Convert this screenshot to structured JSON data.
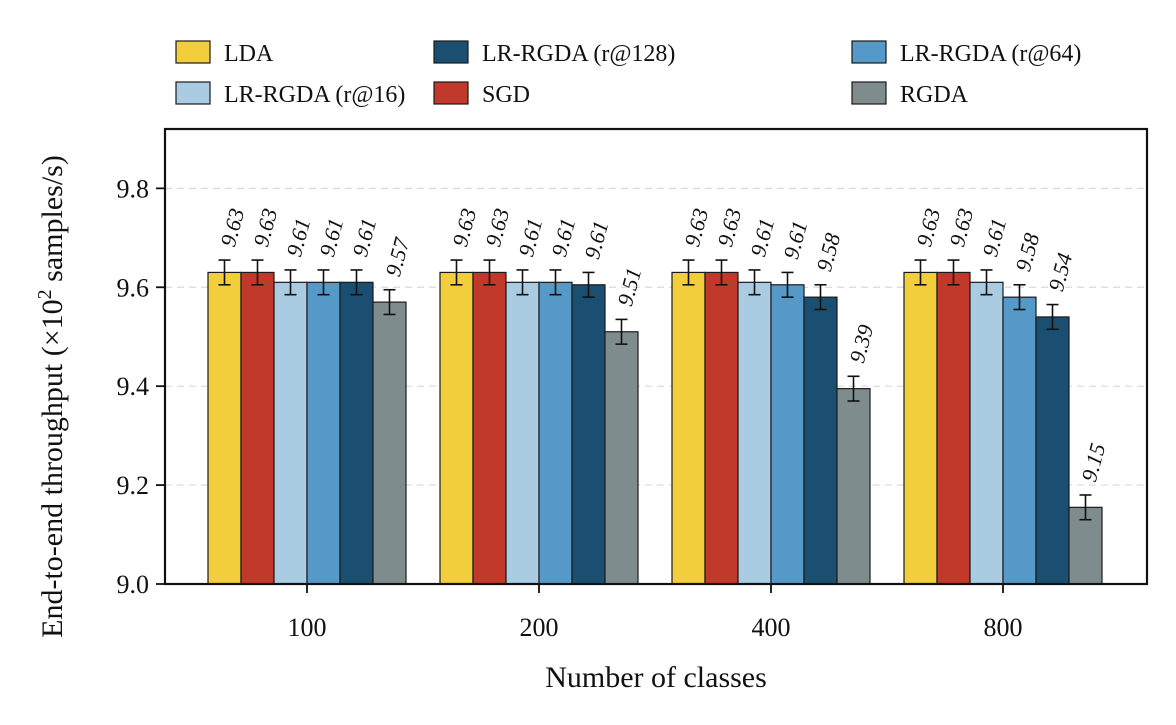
{
  "chart_data": {
    "type": "bar",
    "title": "",
    "xlabel": "Number of classes",
    "ylabel_prefix": "End-to-end throughput (",
    "ylabel_unit": "×10",
    "ylabel_exp": "2",
    "ylabel_suffix": " samples/s)",
    "categories": [
      "100",
      "200",
      "400",
      "800"
    ],
    "ylim": [
      9.0,
      9.92
    ],
    "yticks": [
      9.0,
      9.2,
      9.4,
      9.6,
      9.8
    ],
    "ytick_labels": [
      "9.0",
      "9.2",
      "9.4",
      "9.6",
      "9.8"
    ],
    "grid": true,
    "legend_position": "top",
    "error": 0.025,
    "series": [
      {
        "name": "LDA",
        "color": "#f2cd3c",
        "values": [
          9.63,
          9.63,
          9.63,
          9.63
        ],
        "labels": [
          "9.63",
          "9.63",
          "9.63",
          "9.63"
        ]
      },
      {
        "name": "SGD",
        "color": "#c0392b",
        "values": [
          9.63,
          9.63,
          9.63,
          9.63
        ],
        "labels": [
          "9.63",
          "9.63",
          "9.63",
          "9.63"
        ]
      },
      {
        "name": "LR-RGDA (r@16)",
        "color": "#a9cce3",
        "values": [
          9.61,
          9.61,
          9.61,
          9.61
        ],
        "labels": [
          "9.61",
          "9.61",
          "9.61",
          "9.61"
        ]
      },
      {
        "name": "LR-RGDA (r@64)",
        "color": "#5499c7",
        "values": [
          9.61,
          9.61,
          9.605,
          9.58
        ],
        "labels": [
          "9.61",
          "9.61",
          "9.61",
          "9.58"
        ]
      },
      {
        "name": "LR-RGDA (r@128)",
        "color": "#1b4f72",
        "values": [
          9.61,
          9.605,
          9.58,
          9.54
        ],
        "labels": [
          "9.61",
          "9.61",
          "9.58",
          "9.54"
        ]
      },
      {
        "name": "RGDA",
        "color": "#7f8c8d",
        "values": [
          9.57,
          9.51,
          9.395,
          9.155
        ],
        "labels": [
          "9.57",
          "9.51",
          "9.39",
          "9.15"
        ]
      }
    ],
    "legend_order": [
      0,
      2,
      4,
      1,
      3,
      5
    ]
  }
}
